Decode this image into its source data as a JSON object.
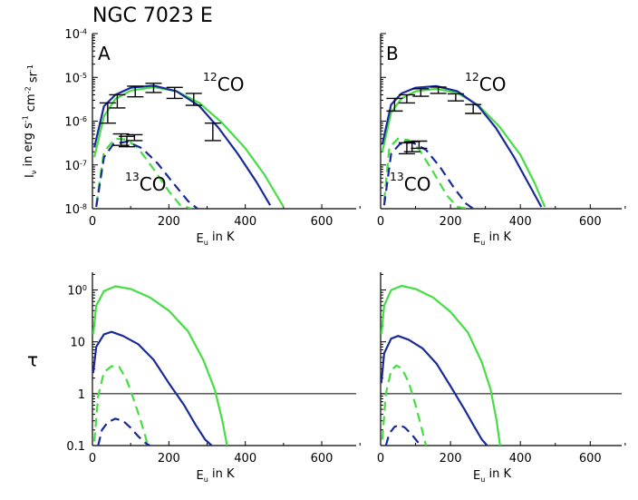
{
  "figure": {
    "title": "NGC 7023 E",
    "colors": {
      "green": "#44dd44",
      "blue": "#1a2a99",
      "axis": "#000000"
    }
  },
  "chart_data": [
    {
      "id": "A-top",
      "type": "line",
      "panel_label": "A",
      "ylog": true,
      "xlim": [
        0,
        690
      ],
      "ylim": [
        1e-08,
        0.0001
      ],
      "xticks": [
        "0",
        "200",
        "400",
        "600"
      ],
      "yticks": [
        "10-8",
        "10-7",
        "10-6",
        "10-5",
        "10-4"
      ],
      "xlabel": "Eu in K",
      "ylabel": "Iν in erg s-1 cm-2 sr-1",
      "annotations": [
        "12CO",
        "13CO"
      ],
      "series": [
        {
          "color": "green",
          "style": "solid",
          "x": [
            5,
            30,
            60,
            100,
            160,
            220,
            280,
            340,
            400,
            450,
            500
          ],
          "y": [
            1.5e-07,
            1.3e-06,
            3.2e-06,
            5e-06,
            6e-06,
            4.8e-06,
            2.6e-06,
            9e-07,
            2.4e-07,
            6e-08,
            1.1e-08
          ]
        },
        {
          "color": "blue",
          "style": "solid",
          "x": [
            5,
            30,
            60,
            100,
            160,
            220,
            280,
            330,
            380,
            430,
            465
          ],
          "y": [
            2.5e-07,
            2.2e-06,
            4e-06,
            5.8e-06,
            6.5e-06,
            4.8e-06,
            2.2e-06,
            7e-07,
            1.8e-07,
            4e-08,
            1.2e-08
          ]
        },
        {
          "color": "green",
          "style": "dashed",
          "x": [
            10,
            30,
            60,
            90,
            120,
            160,
            200,
            230,
            260
          ],
          "y": [
            1.2e-08,
            2e-07,
            4e-07,
            3.8e-07,
            2.4e-07,
            8e-08,
            2.5e-08,
            1.2e-08,
            1e-08
          ]
        },
        {
          "color": "blue",
          "style": "dashed",
          "x": [
            10,
            30,
            55,
            90,
            130,
            170,
            210,
            250,
            275
          ],
          "y": [
            1.1e-08,
            1.5e-07,
            3e-07,
            3.4e-07,
            2.4e-07,
            1.1e-07,
            4e-08,
            1.5e-08,
            1e-08
          ]
        }
      ],
      "errorbars": [
        {
          "x": 40,
          "y": 1.6e-06,
          "ylo": 9e-07,
          "yhi": 2.6e-06
        },
        {
          "x": 65,
          "y": 2.9e-06,
          "ylo": 2e-06,
          "yhi": 4e-06
        },
        {
          "x": 112,
          "y": 5e-06,
          "ylo": 3.6e-06,
          "yhi": 6.3e-06
        },
        {
          "x": 160,
          "y": 6e-06,
          "ylo": 4.5e-06,
          "yhi": 7.3e-06
        },
        {
          "x": 215,
          "y": 4.6e-06,
          "ylo": 3.3e-06,
          "yhi": 5.9e-06
        },
        {
          "x": 265,
          "y": 3.2e-06,
          "ylo": 2.3e-06,
          "yhi": 4.3e-06
        },
        {
          "x": 315,
          "y": 6.5e-07,
          "ylo": 3.6e-07,
          "yhi": 9e-07
        },
        {
          "x": 75,
          "y": 4.3e-07,
          "ylo": 2.8e-07,
          "yhi": 5.1e-07
        },
        {
          "x": 90,
          "y": 3.7e-07,
          "ylo": 2.6e-07,
          "yhi": 4.5e-07
        },
        {
          "x": 110,
          "y": 4.4e-07,
          "ylo": 3.6e-07,
          "yhi": 4.9e-07
        }
      ]
    },
    {
      "id": "B-top",
      "type": "line",
      "panel_label": "B",
      "ylog": true,
      "xlim": [
        0,
        690
      ],
      "ylim": [
        1e-08,
        0.0001
      ],
      "xticks": [
        "0",
        "200",
        "400",
        "600"
      ],
      "yticks": [],
      "xlabel": "Eu in K",
      "ylabel": "",
      "annotations": [
        "12CO",
        "13CO"
      ],
      "series": [
        {
          "color": "green",
          "style": "solid",
          "x": [
            5,
            30,
            60,
            100,
            160,
            220,
            280,
            340,
            400,
            440,
            470
          ],
          "y": [
            2e-07,
            1.6e-06,
            3.3e-06,
            4.8e-06,
            5.5e-06,
            4.4e-06,
            2.3e-06,
            7.5e-07,
            1.7e-07,
            4e-08,
            1.1e-08
          ]
        },
        {
          "color": "blue",
          "style": "solid",
          "x": [
            5,
            30,
            60,
            100,
            160,
            220,
            280,
            330,
            380,
            430,
            460
          ],
          "y": [
            3e-07,
            2.4e-06,
            4.3e-06,
            5.8e-06,
            6.3e-06,
            4.8e-06,
            2.2e-06,
            7e-07,
            1.6e-07,
            3e-08,
            1.1e-08
          ]
        },
        {
          "color": "green",
          "style": "dashed",
          "x": [
            10,
            25,
            50,
            80,
            110,
            150,
            190,
            220,
            250
          ],
          "y": [
            1.5e-08,
            2.5e-07,
            4e-07,
            3.7e-07,
            2.3e-07,
            7e-08,
            2e-08,
            1.1e-08,
            1e-08
          ]
        },
        {
          "color": "blue",
          "style": "dashed",
          "x": [
            10,
            30,
            55,
            90,
            130,
            170,
            210,
            245,
            265
          ],
          "y": [
            1.2e-08,
            1.8e-07,
            3e-07,
            3.3e-07,
            2.2e-07,
            9e-08,
            3e-08,
            1.3e-08,
            1e-08
          ]
        }
      ],
      "errorbars": [
        {
          "x": 40,
          "y": 2.3e-06,
          "ylo": 1.7e-06,
          "yhi": 3.3e-06
        },
        {
          "x": 75,
          "y": 3.3e-06,
          "ylo": 2.6e-06,
          "yhi": 4e-06
        },
        {
          "x": 115,
          "y": 4.5e-06,
          "ylo": 3.7e-06,
          "yhi": 5.5e-06
        },
        {
          "x": 165,
          "y": 5.1e-06,
          "ylo": 4.3e-06,
          "yhi": 6e-06
        },
        {
          "x": 215,
          "y": 3.5e-06,
          "ylo": 2.9e-06,
          "yhi": 4.2e-06
        },
        {
          "x": 265,
          "y": 1.9e-06,
          "ylo": 1.5e-06,
          "yhi": 2.4e-06
        },
        {
          "x": 75,
          "y": 2.5e-07,
          "ylo": 1.8e-07,
          "yhi": 3.2e-07
        },
        {
          "x": 90,
          "y": 2.7e-07,
          "ylo": 2e-07,
          "yhi": 3.4e-07
        },
        {
          "x": 110,
          "y": 3e-07,
          "ylo": 2.4e-07,
          "yhi": 3.5e-07
        }
      ]
    },
    {
      "id": "A-bottom",
      "type": "line",
      "panel_label": "",
      "ylog": true,
      "xlim": [
        0,
        690
      ],
      "ylim": [
        0.1,
        220
      ],
      "xticks": [
        "0",
        "200",
        "400",
        "600"
      ],
      "yticks": [
        "0.1",
        "1",
        "10",
        "100"
      ],
      "xlabel": "Eu in K",
      "ylabel": "τ",
      "hline": 1,
      "series": [
        {
          "color": "green",
          "style": "solid",
          "x": [
            2,
            10,
            30,
            60,
            100,
            150,
            200,
            250,
            290,
            320,
            340,
            352
          ],
          "y": [
            14,
            50,
            95,
            118,
            105,
            72,
            40,
            16,
            4.5,
            1.2,
            0.3,
            0.1
          ]
        },
        {
          "color": "blue",
          "style": "solid",
          "x": [
            2,
            10,
            30,
            50,
            80,
            120,
            160,
            200,
            240,
            270,
            295,
            312
          ],
          "y": [
            2.5,
            8,
            14,
            15.6,
            13,
            9,
            4.5,
            1.6,
            0.6,
            0.25,
            0.13,
            0.1
          ]
        },
        {
          "color": "green",
          "style": "dashed",
          "x": [
            5,
            15,
            30,
            50,
            70,
            90,
            110,
            130,
            145
          ],
          "y": [
            0.12,
            0.9,
            2.6,
            3.4,
            3.3,
            1.8,
            0.7,
            0.25,
            0.1
          ]
        },
        {
          "color": "blue",
          "style": "dashed",
          "x": [
            15,
            25,
            40,
            60,
            80,
            100,
            120,
            140,
            150
          ],
          "y": [
            0.1,
            0.2,
            0.28,
            0.33,
            0.3,
            0.22,
            0.15,
            0.11,
            0.1
          ]
        }
      ]
    },
    {
      "id": "B-bottom",
      "type": "line",
      "panel_label": "",
      "ylog": true,
      "xlim": [
        0,
        690
      ],
      "ylim": [
        0.1,
        220
      ],
      "xticks": [
        "0",
        "200",
        "400",
        "600"
      ],
      "yticks": [],
      "xlabel": "Eu in K",
      "ylabel": "",
      "hline": 1,
      "series": [
        {
          "color": "green",
          "style": "solid",
          "x": [
            2,
            10,
            30,
            60,
            100,
            150,
            200,
            250,
            290,
            315,
            332,
            342
          ],
          "y": [
            14,
            50,
            100,
            120,
            105,
            72,
            38,
            15,
            4,
            1.2,
            0.3,
            0.1
          ]
        },
        {
          "color": "blue",
          "style": "solid",
          "x": [
            2,
            10,
            30,
            50,
            80,
            120,
            160,
            200,
            240,
            270,
            290,
            305
          ],
          "y": [
            1.6,
            6,
            11.5,
            13,
            11,
            7.5,
            3.8,
            1.4,
            0.5,
            0.22,
            0.13,
            0.1
          ]
        },
        {
          "color": "green",
          "style": "dashed",
          "x": [
            5,
            15,
            30,
            45,
            60,
            80,
            100,
            115,
            130
          ],
          "y": [
            0.13,
            1,
            2.8,
            3.5,
            3.1,
            1.7,
            0.6,
            0.25,
            0.1
          ]
        },
        {
          "color": "blue",
          "style": "dashed",
          "x": [
            15,
            25,
            40,
            55,
            70,
            90,
            105,
            115
          ],
          "y": [
            0.1,
            0.17,
            0.23,
            0.25,
            0.22,
            0.16,
            0.12,
            0.1
          ]
        }
      ]
    }
  ]
}
